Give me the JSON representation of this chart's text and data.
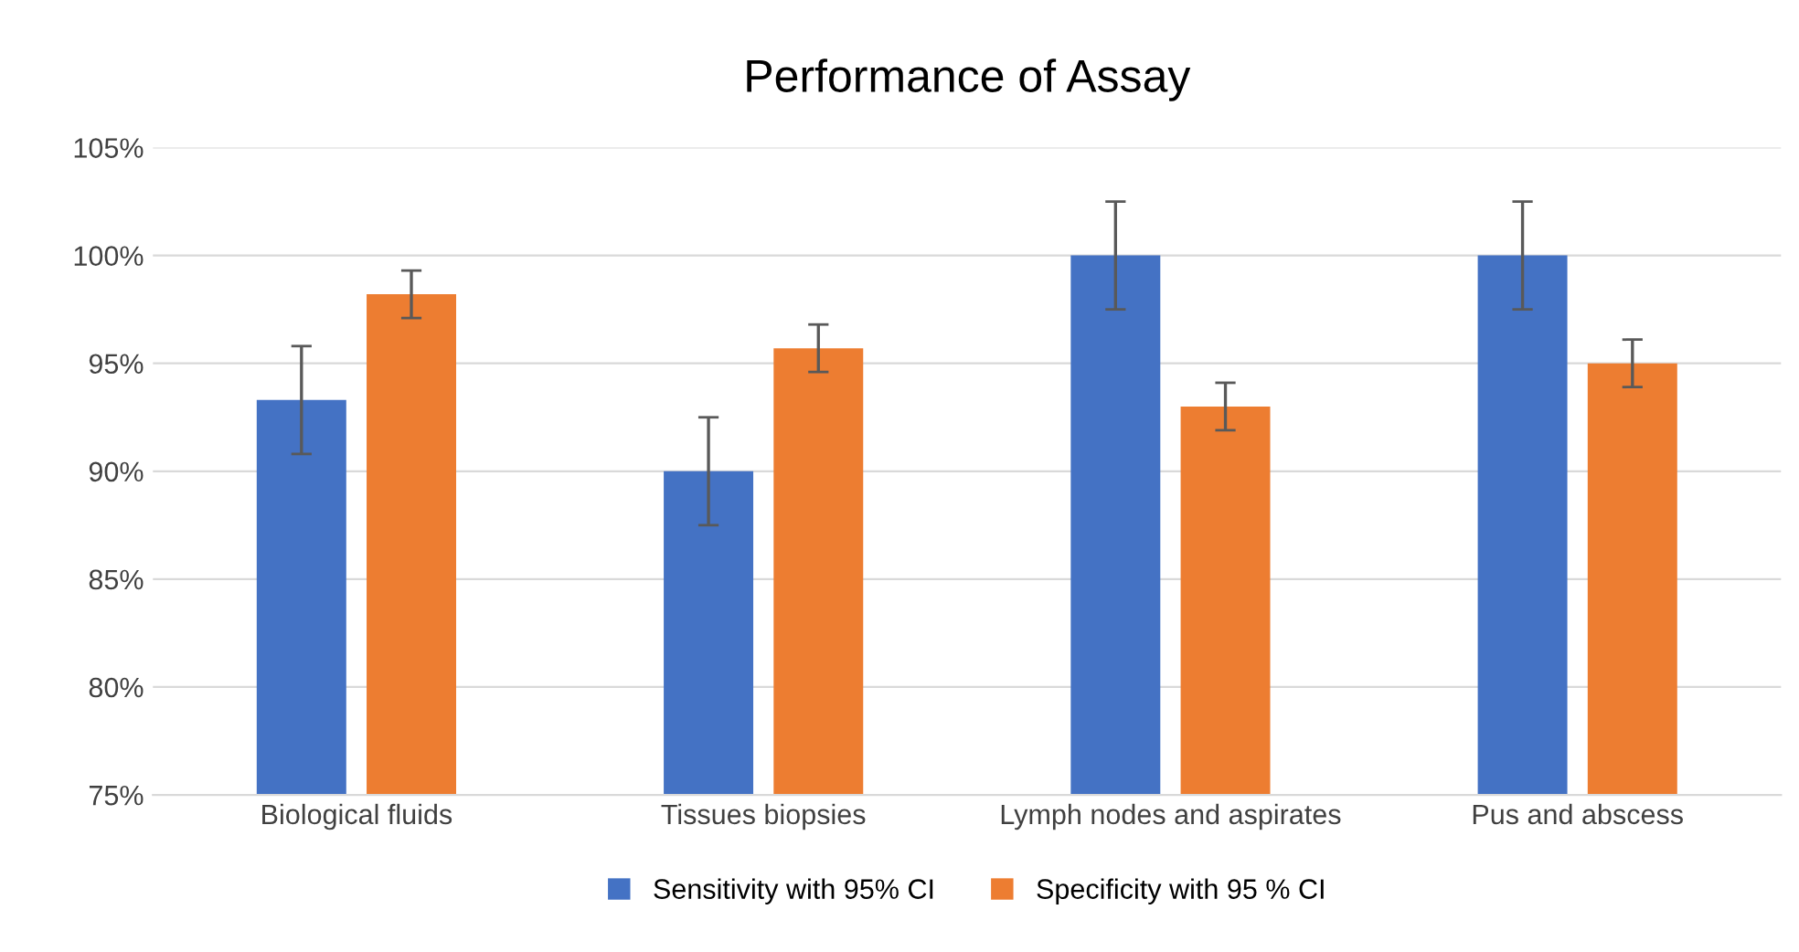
{
  "chart_data": {
    "type": "bar",
    "title": "Performance of Assay",
    "categories": [
      "Biological fluids",
      "Tissues biopsies",
      "Lymph nodes and aspirates",
      "Pus and abscess"
    ],
    "series": [
      {
        "name": "Sensitivity with 95% CI",
        "color": "#4472c4",
        "values": [
          93.3,
          90,
          100,
          100
        ],
        "errors": [
          2.5,
          2.5,
          2.5,
          2.5
        ]
      },
      {
        "name": "Specificity with 95 % CI",
        "color": "#ed7d31",
        "values": [
          98.2,
          95.7,
          93,
          95
        ],
        "errors": [
          1.1,
          1.1,
          1.1,
          1.1
        ]
      }
    ],
    "ylim": [
      75,
      105
    ],
    "yticks": [
      {
        "value": 75,
        "label": "75%"
      },
      {
        "value": 80,
        "label": "80%"
      },
      {
        "value": 85,
        "label": "85%"
      },
      {
        "value": 90,
        "label": "90%"
      },
      {
        "value": 95,
        "label": "95%"
      },
      {
        "value": 100,
        "label": "100%"
      },
      {
        "value": 105,
        "label": "105%"
      }
    ],
    "grid": "y",
    "legend": "bottom"
  }
}
